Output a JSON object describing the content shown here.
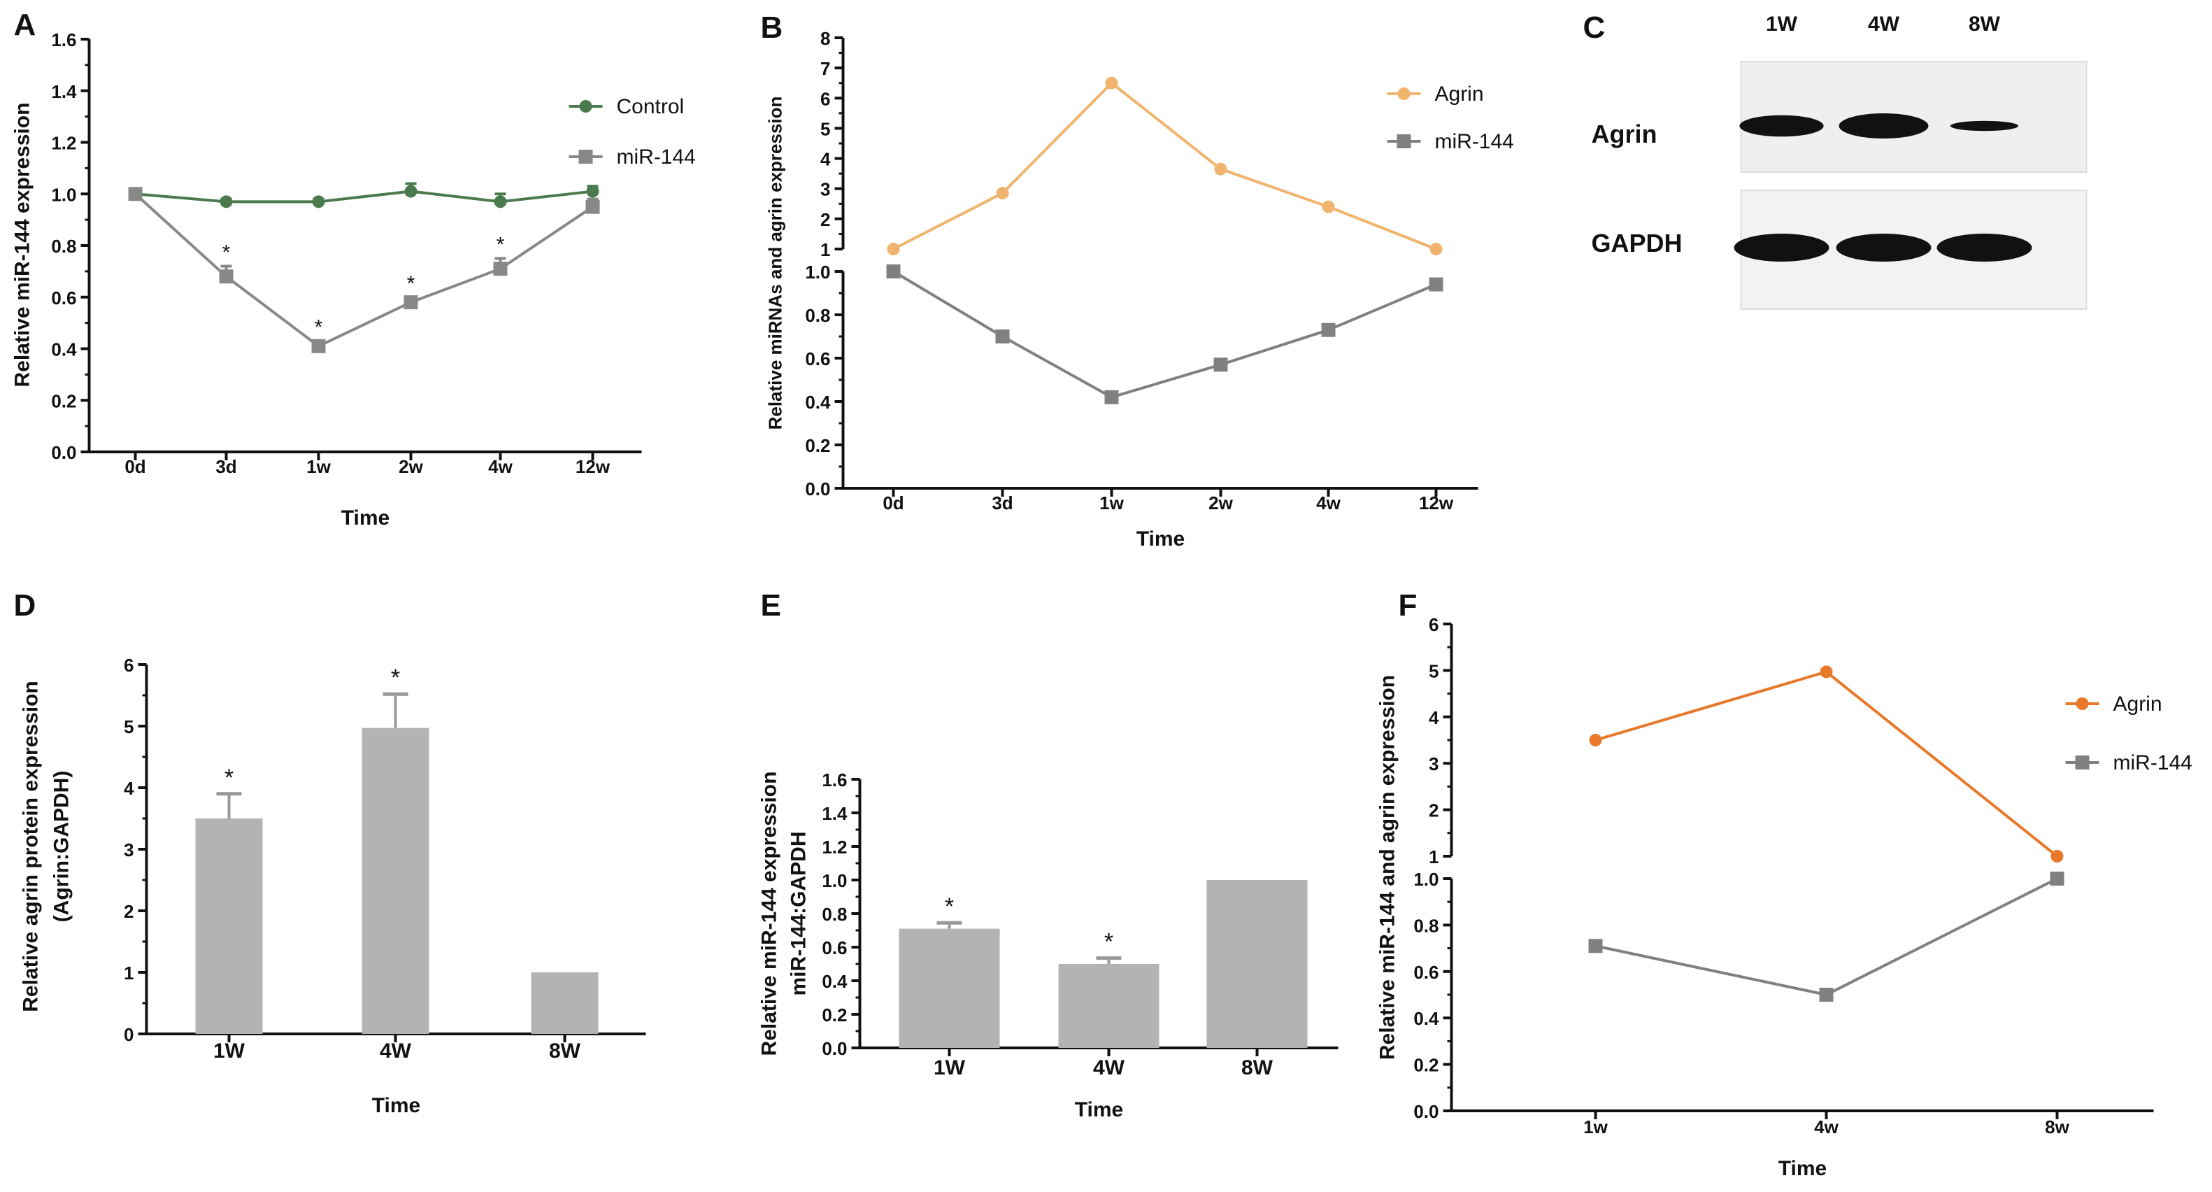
{
  "panel_letters": [
    "A",
    "B",
    "C",
    "D",
    "E",
    "F"
  ],
  "blot": {
    "lanes": [
      "1W",
      "4W",
      "8W"
    ],
    "rows": [
      "Agrin",
      "GAPDH"
    ],
    "agrin_band_intensity": [
      0.85,
      1.0,
      0.4
    ],
    "gapdh_band_intensity": [
      1.0,
      1.0,
      1.0
    ]
  },
  "chart_data": [
    {
      "id": "A",
      "type": "line",
      "xlabel": "Time",
      "ylabel": "Relative miR-144  expression",
      "categories": [
        "0d",
        "3d",
        "1w",
        "2w",
        "4w",
        "12w"
      ],
      "axes": [
        {
          "range": [
            0,
            1.6
          ],
          "ticks": [
            0,
            0.2,
            0.4,
            0.6,
            0.8,
            1.0,
            1.2,
            1.4,
            1.6
          ],
          "labels": [
            "0.0",
            "0.2",
            "0.4",
            "0.6",
            "0.8",
            "1.0",
            "1.2",
            "1.4",
            "1.6"
          ]
        }
      ],
      "legend": "top-right",
      "series": [
        {
          "name": "Control",
          "color": "#4a7a4e",
          "marker": "circle",
          "axis": 0,
          "values": [
            1.0,
            0.97,
            0.97,
            1.01,
            0.97,
            1.01
          ],
          "errors": [
            0,
            0.01,
            0.01,
            0.03,
            0.03,
            0.02
          ]
        },
        {
          "name": "miR-144",
          "color": "#888888",
          "marker": "square",
          "axis": 0,
          "values": [
            1.0,
            0.68,
            0.41,
            0.58,
            0.71,
            0.95
          ],
          "errors": [
            0,
            0.04,
            0.02,
            0.02,
            0.04,
            0.03
          ],
          "annotations": [
            "",
            "*",
            "*",
            "*",
            "*",
            ""
          ]
        }
      ]
    },
    {
      "id": "B",
      "type": "line",
      "xlabel": "Time",
      "ylabel": "Relative miRNAs and agrin  expression",
      "categories": [
        "0d",
        "3d",
        "1w",
        "2w",
        "4w",
        "12w"
      ],
      "axes": [
        {
          "range": [
            0,
            1.0
          ],
          "ticks": [
            0,
            0.2,
            0.4,
            0.6,
            0.8,
            1.0
          ],
          "labels": [
            "0.0",
            "0.2",
            "0.4",
            "0.6",
            "0.8",
            "1.0"
          ]
        },
        {
          "range": [
            1,
            8
          ],
          "ticks": [
            1,
            2,
            3,
            4,
            5,
            6,
            7,
            8
          ],
          "labels": [
            "1",
            "2",
            "3",
            "4",
            "5",
            "6",
            "7",
            "8"
          ]
        }
      ],
      "legend": "top-right",
      "series": [
        {
          "name": "Agrin",
          "color": "#f0b46e",
          "marker": "circle",
          "axis": 1,
          "values": [
            1.0,
            2.85,
            6.5,
            3.65,
            2.4,
            1.0
          ]
        },
        {
          "name": "miR-144",
          "color": "#808080",
          "marker": "square",
          "axis": 0,
          "values": [
            1.0,
            0.7,
            0.42,
            0.57,
            0.73,
            0.94
          ]
        }
      ]
    },
    {
      "id": "D",
      "type": "bar",
      "xlabel": "Time",
      "ylabel": "Relative agrin protein expression",
      "ylabel2": "(Agrin:GAPDH)",
      "categories": [
        "1W",
        "4W",
        "8W"
      ],
      "axes": [
        {
          "range": [
            0,
            6
          ],
          "ticks": [
            0,
            1,
            2,
            3,
            4,
            5,
            6
          ],
          "labels": [
            "0",
            "1",
            "2",
            "3",
            "4",
            "5",
            "6"
          ]
        }
      ],
      "series": [
        {
          "name": "Agrin",
          "color": "#b3b3b3",
          "values": [
            3.5,
            4.97,
            1.0
          ],
          "errors": [
            0.4,
            0.55,
            0
          ],
          "annotations": [
            "*",
            "*",
            ""
          ]
        }
      ]
    },
    {
      "id": "E",
      "type": "bar",
      "xlabel": "Time",
      "ylabel": "Relative miR-144  expression",
      "ylabel2": "miR-144:GAPDH",
      "categories": [
        "1W",
        "4W",
        "8W"
      ],
      "axes": [
        {
          "range": [
            0,
            1.6
          ],
          "ticks": [
            0,
            0.2,
            0.4,
            0.6,
            0.8,
            1.0,
            1.2,
            1.4,
            1.6
          ],
          "labels": [
            "0.0",
            "0.2",
            "0.4",
            "0.6",
            "0.8",
            "1.0",
            "1.2",
            "1.4",
            "1.6"
          ]
        }
      ],
      "series": [
        {
          "name": "miR-144",
          "color": "#b3b3b3",
          "values": [
            0.71,
            0.5,
            1.0
          ],
          "errors": [
            0.035,
            0.035,
            0
          ],
          "annotations": [
            "*",
            "*",
            ""
          ]
        }
      ]
    },
    {
      "id": "F",
      "type": "line",
      "xlabel": "Time",
      "ylabel": "Relative miR-144 and agrin  expression",
      "categories": [
        "1w",
        "4w",
        "8w"
      ],
      "axes": [
        {
          "range": [
            0,
            1.0
          ],
          "ticks": [
            0,
            0.2,
            0.4,
            0.6,
            0.8,
            1.0
          ],
          "labels": [
            "0.0",
            "0.2",
            "0.4",
            "0.6",
            "0.8",
            "1.0"
          ]
        },
        {
          "range": [
            1,
            6
          ],
          "ticks": [
            1,
            2,
            3,
            4,
            5,
            6
          ],
          "labels": [
            "1",
            "2",
            "3",
            "4",
            "5",
            "6"
          ]
        }
      ],
      "legend": "right",
      "series": [
        {
          "name": "Agrin",
          "color": "#e8782a",
          "marker": "circle",
          "axis": 1,
          "values": [
            3.5,
            4.97,
            1.0
          ]
        },
        {
          "name": "miR-144",
          "color": "#808080",
          "marker": "square",
          "axis": 0,
          "values": [
            0.71,
            0.5,
            1.0
          ]
        }
      ]
    }
  ]
}
